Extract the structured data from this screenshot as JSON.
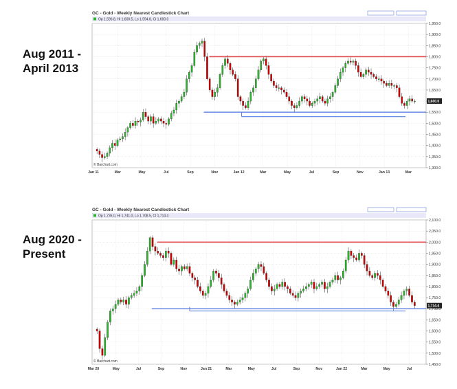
{
  "labels": {
    "top": [
      "Aug 2011 -",
      "April 2013"
    ],
    "bottom": [
      "Aug 2020 -",
      "Present"
    ]
  },
  "colors": {
    "up": "#2bb52b",
    "down": "#cc0000",
    "resistance": "#e05050",
    "support": "#5b7fe0",
    "header_bar": "#e8e8f8"
  },
  "chart_data": [
    {
      "type": "candlestick",
      "title": "GC - Gold - Weekly Nearest Candlestick Chart",
      "ohlc_text": "Op 1,596.8, Hi 1,600.5, Lo 1,594.8, Cl 1,600.0",
      "credit": "© Barchart.com",
      "last_price": "1,600.0",
      "y_ticks": [
        "1,950.0",
        "1,900.0",
        "1,850.0",
        "1,800.0",
        "1,750.0",
        "1,700.0",
        "1,650.0",
        "1,600.0",
        "1,550.0",
        "1,500.0",
        "1,450.0",
        "1,400.0",
        "1,350.0",
        "1,300.0"
      ],
      "ylim": [
        1300,
        1950
      ],
      "x_ticks": [
        "Jan 11",
        "Mar",
        "May",
        "Jul",
        "Sep",
        "Nov",
        "Jan 12",
        "Mar",
        "May",
        "Jul",
        "Sep",
        "Nov",
        "Jan 13",
        "Mar"
      ],
      "resistance": 1800,
      "support": [
        1550,
        1530
      ],
      "closes": [
        1375,
        1360,
        1345,
        1350,
        1365,
        1390,
        1410,
        1400,
        1425,
        1430,
        1440,
        1460,
        1480,
        1500,
        1490,
        1510,
        1505,
        1515,
        1550,
        1530,
        1510,
        1530,
        1500,
        1510,
        1520,
        1510,
        1500,
        1495,
        1520,
        1545,
        1560,
        1590,
        1600,
        1620,
        1640,
        1700,
        1730,
        1760,
        1820,
        1850,
        1860,
        1870,
        1800,
        1700,
        1650,
        1620,
        1640,
        1660,
        1720,
        1760,
        1790,
        1770,
        1740,
        1720,
        1700,
        1620,
        1600,
        1580,
        1570,
        1600,
        1640,
        1660,
        1700,
        1740,
        1780,
        1790,
        1760,
        1720,
        1690,
        1670,
        1660,
        1660,
        1650,
        1640,
        1620,
        1600,
        1580,
        1570,
        1580,
        1600,
        1620,
        1610,
        1600,
        1580,
        1590,
        1600,
        1610,
        1620,
        1600,
        1590,
        1610,
        1620,
        1640,
        1670,
        1700,
        1730,
        1750,
        1770,
        1780,
        1775,
        1780,
        1760,
        1730,
        1710,
        1720,
        1740,
        1730,
        1720,
        1710,
        1700,
        1700,
        1690,
        1680,
        1670,
        1680,
        1670,
        1670,
        1660,
        1620,
        1590,
        1580,
        1600,
        1610,
        1600,
        1600
      ]
    },
    {
      "type": "candlestick",
      "title": "GC - Gold - Weekly Nearest Candlestick Chart",
      "ohlc_text": "Op 1,736.0, Hi 1,741.0, Lo 1,708.5, Cl 1,714.4",
      "credit": "© Barchart.com",
      "last_price": "1,714.4",
      "y_ticks": [
        "2,100.0",
        "2,050.0",
        "2,000.0",
        "1,950.0",
        "1,900.0",
        "1,850.0",
        "1,800.0",
        "1,750.0",
        "1,700.0",
        "1,650.0",
        "1,600.0",
        "1,550.0",
        "1,500.0",
        "1,450.0"
      ],
      "ylim": [
        1450,
        2100
      ],
      "x_ticks": [
        "Mar 20",
        "May",
        "Jul",
        "Sep",
        "Nov",
        "Jan 21",
        "Mar",
        "May",
        "Jul",
        "Sep",
        "Nov",
        "Jan 22",
        "Mar",
        "May",
        "Jul"
      ],
      "resistance": 2000,
      "support": [
        1700,
        1690
      ],
      "closes": [
        1600,
        1520,
        1490,
        1570,
        1640,
        1690,
        1700,
        1720,
        1740,
        1730,
        1740,
        1720,
        1750,
        1760,
        1770,
        1780,
        1800,
        1850,
        1900,
        1960,
        2020,
        1980,
        1960,
        1950,
        1940,
        1930,
        1960,
        1950,
        1900,
        1920,
        1880,
        1870,
        1890,
        1880,
        1890,
        1860,
        1840,
        1830,
        1800,
        1780,
        1760,
        1770,
        1800,
        1830,
        1870,
        1860,
        1840,
        1810,
        1780,
        1760,
        1740,
        1730,
        1720,
        1730,
        1740,
        1750,
        1770,
        1790,
        1830,
        1860,
        1880,
        1900,
        1890,
        1860,
        1830,
        1800,
        1780,
        1790,
        1810,
        1800,
        1820,
        1800,
        1790,
        1770,
        1760,
        1750,
        1770,
        1780,
        1790,
        1800,
        1810,
        1820,
        1790,
        1800,
        1810,
        1820,
        1790,
        1800,
        1820,
        1830,
        1850,
        1830,
        1840,
        1870,
        1920,
        1960,
        1940,
        1930,
        1920,
        1950,
        1940,
        1900,
        1870,
        1850,
        1840,
        1860,
        1850,
        1830,
        1800,
        1780,
        1760,
        1730,
        1710,
        1720,
        1740,
        1760,
        1780,
        1790,
        1760,
        1730,
        1714
      ]
    }
  ]
}
